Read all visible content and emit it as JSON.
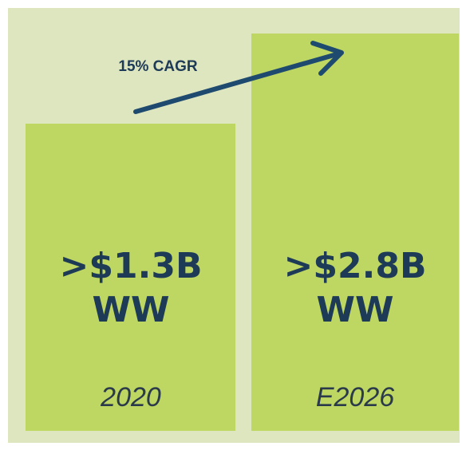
{
  "annotation": "15% CAGR",
  "bars": [
    {
      "value": ">$1.3B",
      "region": "WW",
      "year": "2020"
    },
    {
      "value": ">$2.8B",
      "region": "WW",
      "year": "E2026"
    }
  ]
}
